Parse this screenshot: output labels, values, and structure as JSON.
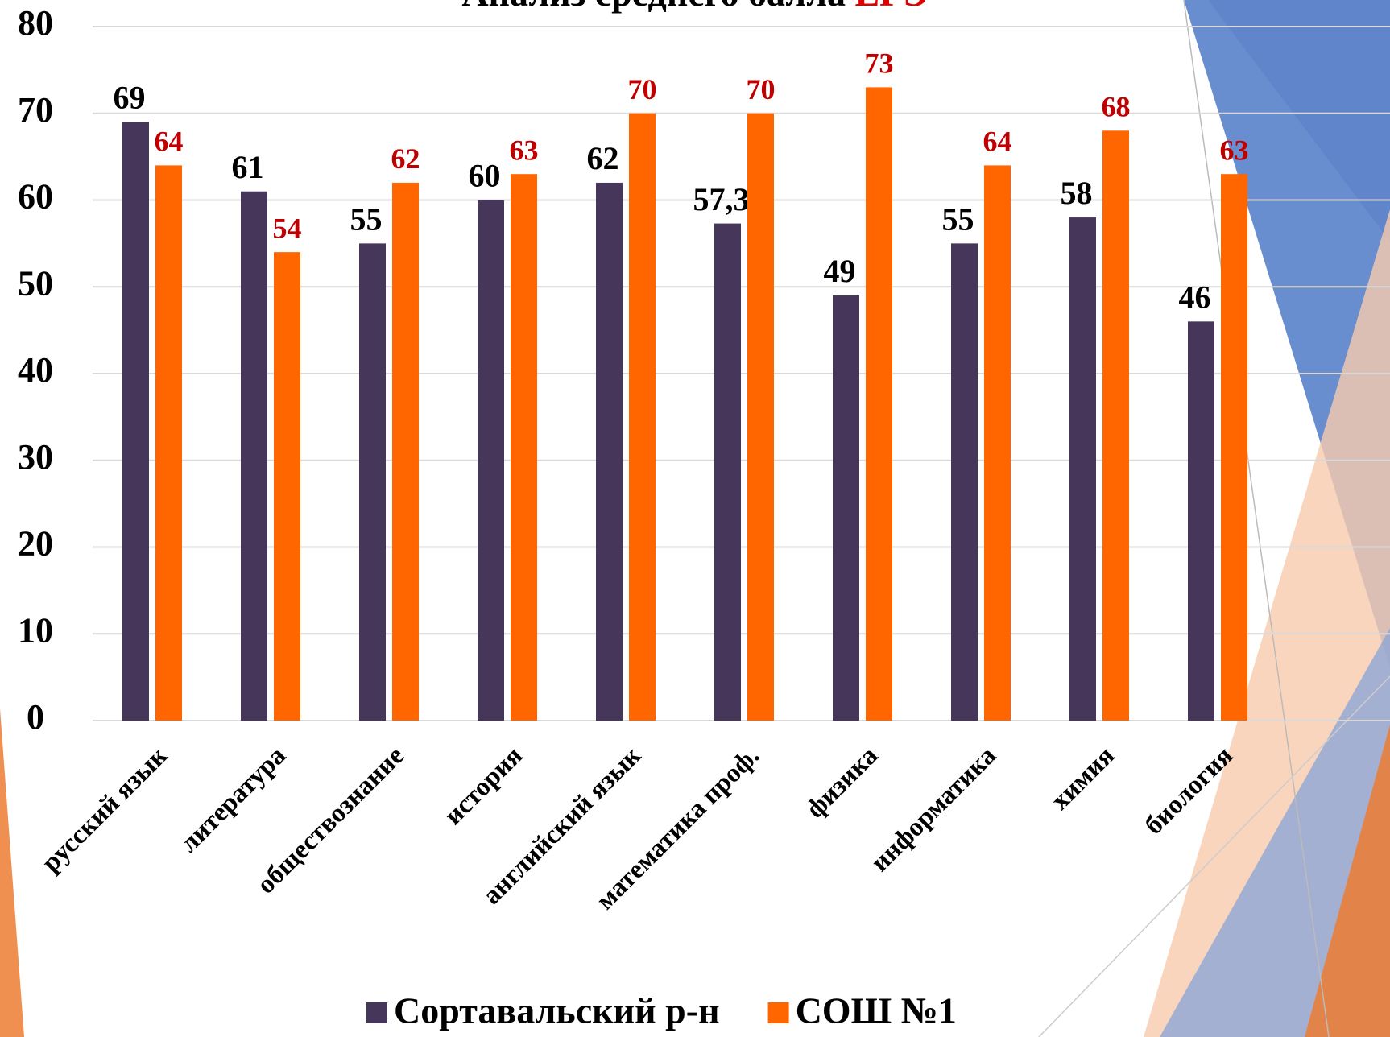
{
  "chart_data": {
    "type": "bar",
    "title": "Анализ среднего балла",
    "title_highlight": "ЕГЭ",
    "categories": [
      "русский язык",
      "литература",
      "обществознание",
      "история",
      "английский язык",
      "математика проф.",
      "физика",
      "информатика",
      "химия",
      "биология"
    ],
    "series": [
      {
        "name": "Сортавальский р-н",
        "color": "#46375a",
        "label_color": "#000000",
        "values": [
          69,
          61,
          55,
          60,
          62,
          57.3,
          49,
          55,
          58,
          46
        ],
        "value_labels": [
          "69",
          "61",
          "55",
          "60",
          "62",
          "57,3",
          "49",
          "55",
          "58",
          "46"
        ]
      },
      {
        "name": "СОШ №1",
        "color": "#ff6600",
        "label_color": "#c00000",
        "values": [
          64,
          54,
          62,
          63,
          70,
          70,
          73,
          64,
          68,
          63
        ]
      }
    ],
    "ylim": [
      0,
      80
    ],
    "yticks": [
      0,
      10,
      20,
      30,
      40,
      50,
      60,
      70,
      80
    ],
    "grid": true
  }
}
